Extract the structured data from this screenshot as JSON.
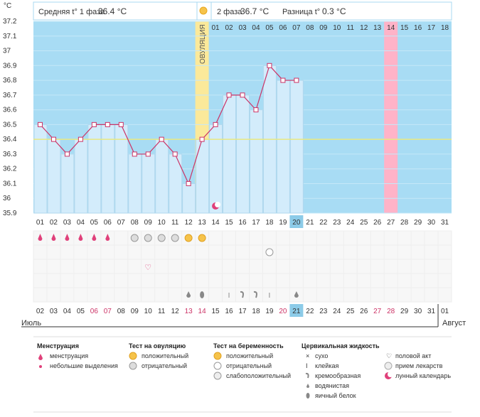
{
  "header": {
    "unit": "°C",
    "phase1_label": "Средняя t° 1 фаза",
    "phase1_value": "36.4 °C",
    "phase2_label": "2 фаза",
    "phase2_value": "36.7 °C",
    "diff_label": "Разница t°",
    "diff_value": "0.3 °C"
  },
  "chart_data": {
    "type": "line",
    "ylim": [
      35.9,
      37.2
    ],
    "yticks": [
      "37.2",
      "37.1",
      "37",
      "36.9",
      "36.8",
      "36.7",
      "36.6",
      "36.5",
      "36.4",
      "36.3",
      "36.2",
      "36.1",
      "36",
      "35.9"
    ],
    "coverline": 36.4,
    "ovulation_label": "ОВУЛЯЦИЯ",
    "ovulation_index": 12,
    "cycle_days": [
      "01",
      "02",
      "03",
      "04",
      "05",
      "06",
      "07",
      "08",
      "09",
      "10",
      "11",
      "12",
      "13",
      "14",
      "15",
      "16",
      "17",
      "18",
      "19",
      "20",
      "21",
      "22",
      "23",
      "24",
      "25",
      "26",
      "27",
      "28",
      "29",
      "30",
      "31"
    ],
    "top_days_phase2": [
      "01",
      "02",
      "03",
      "04",
      "05",
      "06",
      "07",
      "08",
      "09",
      "10",
      "11",
      "12",
      "13",
      "14",
      "15",
      "16",
      "17",
      "18"
    ],
    "highlighted_top_day_index": 13,
    "calendar_dates": [
      "02",
      "03",
      "04",
      "05",
      "06",
      "07",
      "08",
      "09",
      "10",
      "11",
      "12",
      "13",
      "14",
      "15",
      "16",
      "17",
      "18",
      "19",
      "20",
      "21",
      "22",
      "23",
      "24",
      "25",
      "26",
      "27",
      "28",
      "29",
      "30",
      "31",
      "01"
    ],
    "red_date_indices": [
      4,
      5,
      11,
      12,
      18,
      25,
      26
    ],
    "current_day_index": 19,
    "temperatures": [
      36.5,
      36.4,
      36.3,
      36.4,
      36.5,
      36.5,
      36.5,
      36.3,
      36.3,
      36.4,
      36.3,
      36.1,
      36.4,
      36.5,
      36.7,
      36.7,
      36.6,
      36.9,
      36.8,
      36.8
    ],
    "months": [
      "Июль",
      "Август"
    ],
    "menstruation_days": [
      0,
      1,
      2,
      3,
      4,
      5
    ],
    "ovulation_test_negative_days": [
      7,
      8,
      9,
      10
    ],
    "ovulation_test_positive_days": [
      11,
      12
    ],
    "intercourse_days": [
      8
    ],
    "pregnancy_test_negative_days": [
      17
    ],
    "moon_days": [
      13
    ],
    "cervical": [
      {
        "day": 11,
        "type": "watery"
      },
      {
        "day": 12,
        "type": "eggwhite"
      },
      {
        "day": 14,
        "type": "sticky"
      },
      {
        "day": 15,
        "type": "creamy"
      },
      {
        "day": 16,
        "type": "creamy"
      },
      {
        "day": 17,
        "type": "sticky"
      },
      {
        "day": 19,
        "type": "watery"
      }
    ],
    "colors": {
      "bg": "#a8dcf4",
      "bar": "#d3ecfb",
      "line": "#cc3366",
      "ovulation": "#fbe99a",
      "highlight": "#ffb3c8",
      "coverline": "#e8e880"
    }
  },
  "legend": {
    "menstruation": {
      "title": "Менструация",
      "items": [
        "менструация",
        "небольшие выделения"
      ]
    },
    "ovulation_test": {
      "title": "Тест на овуляцию",
      "items": [
        "положительный",
        "отрицательный"
      ]
    },
    "pregnancy_test": {
      "title": "Тест на беременность",
      "items": [
        "положительный",
        "отрицательный",
        "слабоположительный"
      ]
    },
    "cervical": {
      "title": "Цервикальная жидкость",
      "items": [
        "сухо",
        "клейкая",
        "кремообразная",
        "водянистая",
        "яичный белок"
      ]
    },
    "other": {
      "items": [
        "половой акт",
        "прием лекарств",
        "лунный календарь"
      ]
    }
  }
}
